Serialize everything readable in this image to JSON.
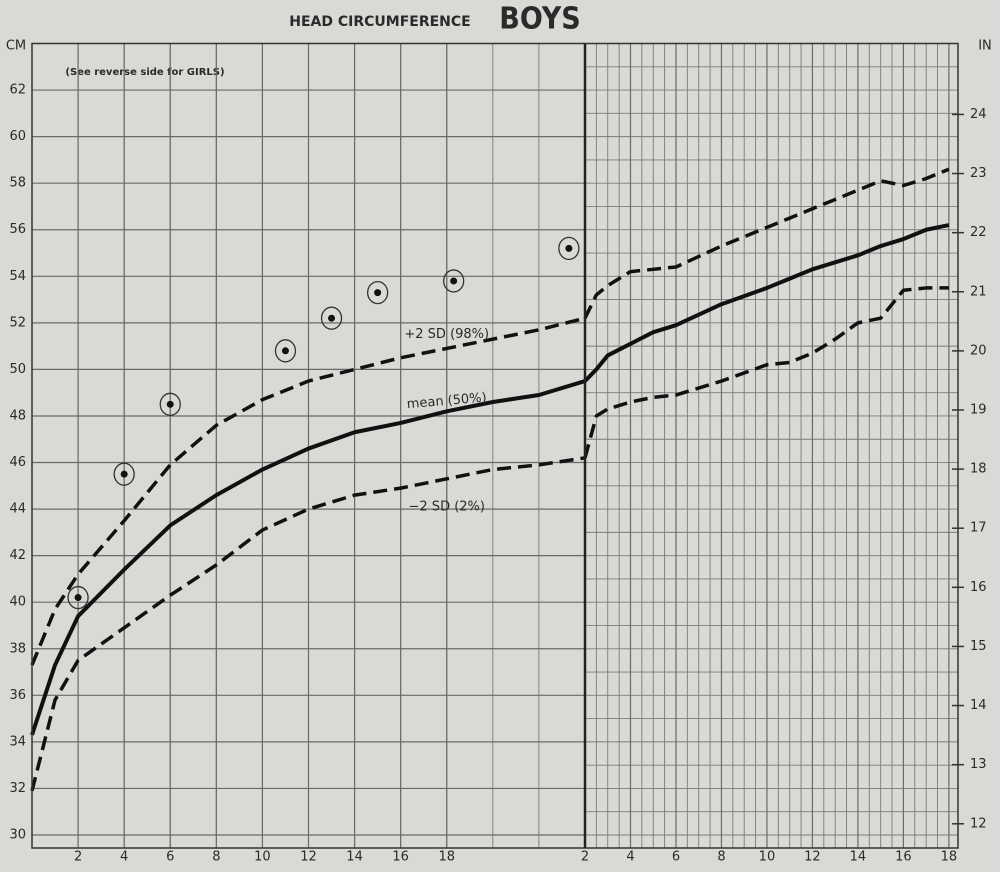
{
  "chart_data": [
    {
      "type": "line",
      "title": "HEAD CIRCUMFERENCE",
      "subtitle": "BOYS",
      "annotations": [
        "(See reverse side for GIRLS)"
      ],
      "ylabel": "CM",
      "x": [
        0,
        1,
        2,
        4,
        6,
        8,
        10,
        12,
        14,
        16,
        18,
        20,
        22,
        24
      ],
      "xlim": [
        0,
        24
      ],
      "xticks": [
        2,
        4,
        6,
        8,
        10,
        12,
        14,
        16,
        18
      ],
      "ylim": [
        30,
        64
      ],
      "yticks": [
        30,
        32,
        34,
        36,
        38,
        40,
        42,
        44,
        46,
        48,
        50,
        52,
        54,
        56,
        58,
        60,
        62
      ],
      "grid": true,
      "series": [
        {
          "name": "+2 SD (98%)",
          "color": "#111111",
          "style": "dashed",
          "values": [
            37.3,
            39.7,
            41.2,
            43.5,
            45.9,
            47.6,
            48.7,
            49.5,
            50.0,
            50.5,
            50.9,
            51.3,
            51.7,
            52.2
          ]
        },
        {
          "name": "mean (50%)",
          "color": "#111111",
          "style": "solid",
          "values": [
            34.3,
            37.3,
            39.4,
            41.4,
            43.3,
            44.6,
            45.7,
            46.6,
            47.3,
            47.7,
            48.2,
            48.6,
            48.9,
            49.5
          ]
        },
        {
          "name": "−2 SD (2%)",
          "color": "#111111",
          "style": "dashed",
          "values": [
            31.9,
            35.8,
            37.5,
            38.9,
            40.3,
            41.6,
            43.1,
            44.0,
            44.6,
            44.9,
            45.3,
            45.7,
            45.9,
            46.2
          ]
        }
      ],
      "points": {
        "color": "#111111",
        "x": [
          2,
          4,
          6,
          11,
          13,
          15,
          18.3,
          23.3
        ],
        "values": [
          40.2,
          45.5,
          48.5,
          50.8,
          52.2,
          53.3,
          53.8,
          55.2
        ]
      }
    },
    {
      "type": "line",
      "y2label": "IN",
      "x": [
        2,
        2.5,
        3,
        4,
        5,
        6,
        8,
        10,
        11,
        12,
        13,
        14,
        15,
        16,
        17,
        18
      ],
      "xlim": [
        2,
        18.4
      ],
      "xticks": [
        2,
        4,
        6,
        8,
        10,
        12,
        14,
        16,
        18
      ],
      "ylim": [
        30,
        64
      ],
      "y2lim": [
        11.81,
        25.2
      ],
      "y2ticks": [
        12,
        13,
        14,
        15,
        16,
        17,
        18,
        19,
        20,
        21,
        22,
        23,
        24
      ],
      "grid": true,
      "series": [
        {
          "color": "#111111",
          "style": "dashed",
          "values": [
            52.2,
            53.2,
            53.6,
            54.2,
            54.3,
            54.4,
            55.3,
            56.1,
            56.5,
            56.9,
            57.3,
            57.7,
            58.1,
            57.9,
            58.2,
            58.6
          ]
        },
        {
          "color": "#111111",
          "style": "solid",
          "values": [
            49.5,
            50.0,
            50.6,
            51.1,
            51.6,
            51.9,
            52.8,
            53.5,
            53.9,
            54.3,
            54.6,
            54.9,
            55.3,
            55.6,
            56.0,
            56.2
          ]
        },
        {
          "color": "#111111",
          "style": "dashed",
          "values": [
            46.2,
            48.0,
            48.3,
            48.6,
            48.8,
            48.9,
            49.5,
            50.2,
            50.3,
            50.7,
            51.3,
            52.0,
            52.2,
            53.4,
            53.5,
            53.5
          ]
        }
      ]
    }
  ]
}
